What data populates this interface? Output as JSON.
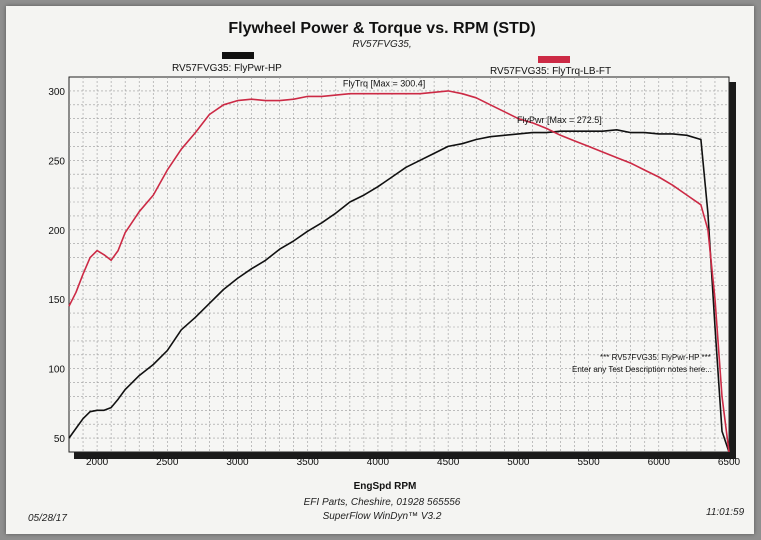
{
  "chart_data": {
    "type": "line",
    "title": "Flywheel Power & Torque vs. RPM (STD)",
    "subtitle": "RV57FVG35,",
    "xlabel": "EngSpd RPM",
    "ylabel": "",
    "xlim": [
      1800,
      6500
    ],
    "ylim": [
      40,
      310
    ],
    "xticks": [
      2000,
      2500,
      3000,
      3500,
      4000,
      4500,
      5000,
      5500,
      6000,
      6500
    ],
    "yticks": [
      50,
      100,
      150,
      200,
      250,
      300
    ],
    "grid": true,
    "legend_placement": "top",
    "series": [
      {
        "name": "RV57FVG35: FlyPwr-HP",
        "color": "#111111",
        "annotation": "FlyPwr [Max = 272.5]",
        "x": [
          1800,
          1850,
          1900,
          1950,
          2000,
          2050,
          2100,
          2150,
          2200,
          2300,
          2400,
          2500,
          2600,
          2700,
          2800,
          2900,
          3000,
          3100,
          3200,
          3300,
          3400,
          3500,
          3600,
          3700,
          3800,
          3900,
          4000,
          4100,
          4200,
          4300,
          4400,
          4500,
          4600,
          4700,
          4800,
          4900,
          5000,
          5100,
          5200,
          5300,
          5400,
          5500,
          5600,
          5700,
          5800,
          5900,
          6000,
          6100,
          6200,
          6300,
          6350,
          6400,
          6450,
          6500
        ],
        "y": [
          50,
          57,
          64,
          69,
          70,
          70,
          72,
          78,
          85,
          95,
          103,
          113,
          128,
          137,
          147,
          157,
          165,
          172,
          178,
          186,
          192,
          199,
          205,
          212,
          220,
          225,
          231,
          238,
          245,
          250,
          255,
          260,
          262,
          265,
          267,
          268,
          269,
          270,
          270,
          271,
          271,
          271,
          271,
          272,
          270,
          270,
          269,
          269,
          268,
          265,
          212,
          130,
          55,
          40
        ]
      },
      {
        "name": "RV57FVG35: FlyTrq-LB-FT",
        "color": "#cc2a45",
        "annotation": "FlyTrq [Max = 300.4]",
        "x": [
          1800,
          1850,
          1900,
          1950,
          2000,
          2050,
          2100,
          2150,
          2200,
          2300,
          2400,
          2500,
          2600,
          2700,
          2800,
          2900,
          3000,
          3100,
          3200,
          3300,
          3400,
          3500,
          3600,
          3700,
          3800,
          3900,
          4000,
          4100,
          4200,
          4300,
          4400,
          4500,
          4600,
          4700,
          4800,
          4900,
          5000,
          5100,
          5200,
          5300,
          5400,
          5500,
          5600,
          5700,
          5800,
          5900,
          6000,
          6100,
          6200,
          6300,
          6350,
          6400,
          6450,
          6500
        ],
        "y": [
          145,
          155,
          168,
          180,
          185,
          182,
          178,
          185,
          198,
          213,
          225,
          243,
          258,
          270,
          283,
          290,
          293,
          294,
          293,
          293,
          294,
          296,
          296,
          297,
          298,
          298,
          298,
          298,
          298,
          298,
          299,
          300,
          298,
          295,
          290,
          285,
          280,
          277,
          273,
          268,
          264,
          260,
          256,
          252,
          248,
          243,
          238,
          232,
          225,
          218,
          200,
          150,
          80,
          40
        ]
      }
    ],
    "notes": [
      "*** RV57FVG35: FlyPwr-HP ***",
      "Enter any Test Description notes here..."
    ]
  },
  "footer": {
    "date": "05/28/17",
    "time": "11:01:59",
    "line1": "EFI Parts, Cheshire, 01928 565556",
    "line2": "SuperFlow WinDyn™ V3.2"
  }
}
